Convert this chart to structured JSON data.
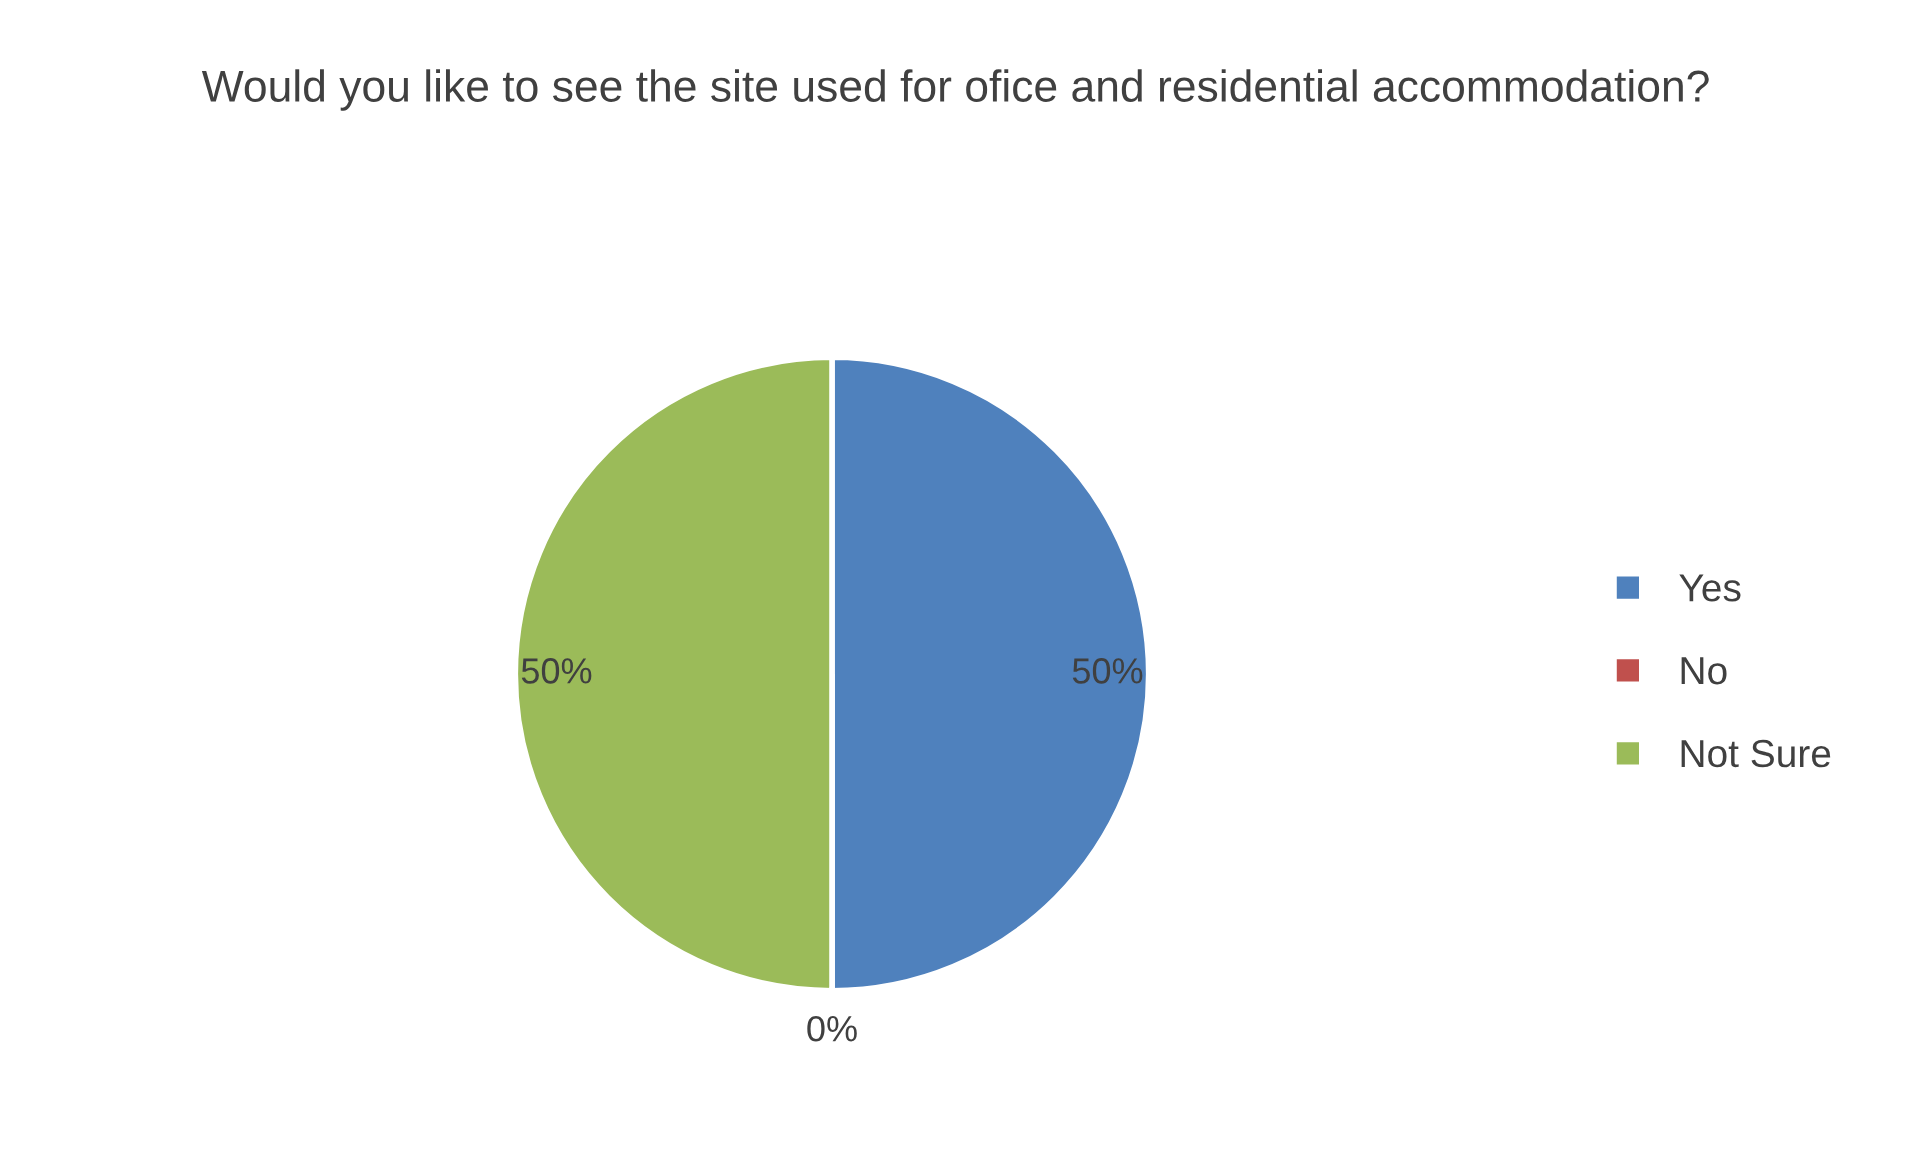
{
  "chart_data": {
    "type": "pie",
    "title": "Would you like to see the site used for ofice and residential accommodation?",
    "categories": [
      "Yes",
      "No",
      "Not Sure"
    ],
    "values": [
      50,
      0,
      50
    ],
    "colors": [
      "#4f81bd",
      "#c0504d",
      "#9bbb59"
    ],
    "value_labels": [
      "50%",
      "0%",
      "50%"
    ],
    "legend": "right"
  }
}
